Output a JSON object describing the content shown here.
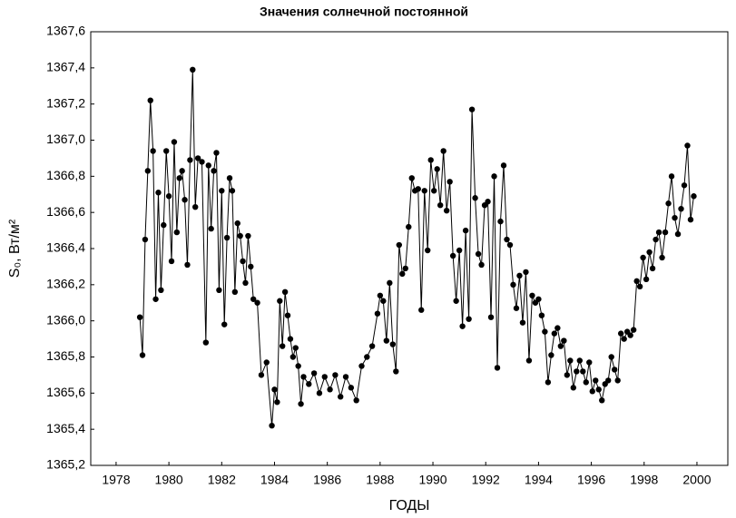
{
  "chart_data": {
    "type": "line",
    "title": "Значения солнечной постоянной",
    "x_label": "ГОДЫ",
    "y_label": "S₀, Вт/м²",
    "x": [
      1978.9,
      1979.0,
      1979.1,
      1979.2,
      1979.3,
      1979.4,
      1979.5,
      1979.6,
      1979.7,
      1979.8,
      1979.9,
      1980.0,
      1980.1,
      1980.2,
      1980.3,
      1980.4,
      1980.5,
      1980.6,
      1980.7,
      1980.8,
      1980.9,
      1981.0,
      1981.1,
      1981.25,
      1981.4,
      1981.5,
      1981.6,
      1981.7,
      1981.8,
      1981.9,
      1982.0,
      1982.1,
      1982.2,
      1982.3,
      1982.4,
      1982.5,
      1982.6,
      1982.7,
      1982.8,
      1982.9,
      1983.0,
      1983.1,
      1983.2,
      1983.35,
      1983.5,
      1983.7,
      1983.9,
      1984.0,
      1984.1,
      1984.2,
      1984.3,
      1984.4,
      1984.5,
      1984.6,
      1984.7,
      1984.8,
      1984.9,
      1985.0,
      1985.1,
      1985.3,
      1985.5,
      1985.7,
      1985.9,
      1986.1,
      1986.3,
      1986.5,
      1986.7,
      1986.9,
      1987.1,
      1987.3,
      1987.5,
      1987.7,
      1987.9,
      1988.0,
      1988.12,
      1988.24,
      1988.36,
      1988.48,
      1988.6,
      1988.72,
      1988.84,
      1988.96,
      1989.08,
      1989.2,
      1989.32,
      1989.44,
      1989.56,
      1989.68,
      1989.8,
      1989.92,
      1990.04,
      1990.16,
      1990.28,
      1990.4,
      1990.52,
      1990.64,
      1990.76,
      1990.88,
      1991.0,
      1991.12,
      1991.24,
      1991.36,
      1991.48,
      1991.6,
      1991.72,
      1991.84,
      1991.96,
      1992.08,
      1992.2,
      1992.32,
      1992.44,
      1992.56,
      1992.68,
      1992.8,
      1992.92,
      1993.04,
      1993.16,
      1993.28,
      1993.4,
      1993.52,
      1993.64,
      1993.76,
      1993.88,
      1994.0,
      1994.12,
      1994.24,
      1994.36,
      1994.48,
      1994.6,
      1994.72,
      1994.84,
      1994.96,
      1995.08,
      1995.2,
      1995.32,
      1995.44,
      1995.56,
      1995.68,
      1995.8,
      1995.92,
      1996.04,
      1996.16,
      1996.28,
      1996.4,
      1996.52,
      1996.64,
      1996.76,
      1996.88,
      1997.0,
      1997.12,
      1997.24,
      1997.36,
      1997.48,
      1997.6,
      1997.72,
      1997.84,
      1997.96,
      1998.08,
      1998.2,
      1998.32,
      1998.44,
      1998.56,
      1998.68,
      1998.8,
      1998.92,
      1999.04,
      1999.16,
      1999.28,
      1999.4,
      1999.52,
      1999.64,
      1999.76,
      1999.88
    ],
    "series": [
      {
        "color": "#000000",
        "values": [
          1366.02,
          1365.81,
          1366.45,
          1366.83,
          1367.22,
          1366.94,
          1366.12,
          1366.71,
          1366.17,
          1366.53,
          1366.94,
          1366.69,
          1366.33,
          1366.99,
          1366.49,
          1366.79,
          1366.83,
          1366.67,
          1366.31,
          1366.89,
          1367.39,
          1366.63,
          1366.9,
          1366.88,
          1365.88,
          1366.86,
          1366.51,
          1366.83,
          1366.93,
          1366.17,
          1366.72,
          1365.98,
          1366.46,
          1366.79,
          1366.72,
          1366.16,
          1366.54,
          1366.47,
          1366.33,
          1366.21,
          1366.47,
          1366.3,
          1366.12,
          1366.1,
          1365.7,
          1365.77,
          1365.42,
          1365.62,
          1365.55,
          1366.11,
          1365.86,
          1366.16,
          1366.03,
          1365.9,
          1365.8,
          1365.85,
          1365.75,
          1365.54,
          1365.69,
          1365.65,
          1365.71,
          1365.6,
          1365.69,
          1365.62,
          1365.7,
          1365.58,
          1365.69,
          1365.63,
          1365.56,
          1365.75,
          1365.8,
          1365.86,
          1366.04,
          1366.14,
          1366.11,
          1365.89,
          1366.21,
          1365.87,
          1365.72,
          1366.42,
          1366.26,
          1366.29,
          1366.52,
          1366.79,
          1366.72,
          1366.73,
          1366.06,
          1366.72,
          1366.39,
          1366.89,
          1366.72,
          1366.84,
          1366.64,
          1366.94,
          1366.61,
          1366.77,
          1366.36,
          1366.11,
          1366.39,
          1365.97,
          1366.5,
          1366.01,
          1367.17,
          1366.68,
          1366.37,
          1366.31,
          1366.64,
          1366.66,
          1366.02,
          1366.8,
          1365.74,
          1366.55,
          1366.86,
          1366.45,
          1366.42,
          1366.2,
          1366.07,
          1366.25,
          1365.99,
          1366.27,
          1365.78,
          1366.14,
          1366.1,
          1366.12,
          1366.03,
          1365.94,
          1365.66,
          1365.81,
          1365.93,
          1365.96,
          1365.86,
          1365.89,
          1365.7,
          1365.78,
          1365.63,
          1365.72,
          1365.78,
          1365.72,
          1365.66,
          1365.77,
          1365.61,
          1365.67,
          1365.62,
          1365.56,
          1365.65,
          1365.67,
          1365.8,
          1365.73,
          1365.67,
          1365.93,
          1365.9,
          1365.94,
          1365.92,
          1365.95,
          1366.22,
          1366.19,
          1366.35,
          1366.23,
          1366.38,
          1366.29,
          1366.45,
          1366.49,
          1366.35,
          1366.49,
          1366.65,
          1366.8,
          1366.57,
          1366.48,
          1366.62,
          1366.75,
          1366.97,
          1366.56,
          1366.69
        ]
      }
    ],
    "xlim": [
      1977.04,
      2001.17
    ],
    "xticks": [
      1978,
      1980,
      1982,
      1984,
      1986,
      1988,
      1990,
      1992,
      1994,
      1996,
      1998,
      2000
    ],
    "ylim": [
      1365.2,
      1367.6
    ],
    "yticks": [
      {
        "value": 1365.2,
        "label": "1365,2"
      },
      {
        "value": 1365.4,
        "label": "1365,4"
      },
      {
        "value": 1365.6,
        "label": "1365,6"
      },
      {
        "value": 1365.8,
        "label": "1365,8"
      },
      {
        "value": 1366.0,
        "label": "1366,0"
      },
      {
        "value": 1366.2,
        "label": "1366,2"
      },
      {
        "value": 1366.4,
        "label": "1366,4"
      },
      {
        "value": 1366.6,
        "label": "1366,6"
      },
      {
        "value": 1366.8,
        "label": "1366,8"
      },
      {
        "value": 1367.0,
        "label": "1367,0"
      },
      {
        "value": 1367.2,
        "label": "1367,2"
      },
      {
        "value": 1367.4,
        "label": "1367,4"
      },
      {
        "value": 1367.6,
        "label": "1367,6"
      }
    ],
    "grid": false,
    "markers": true
  }
}
